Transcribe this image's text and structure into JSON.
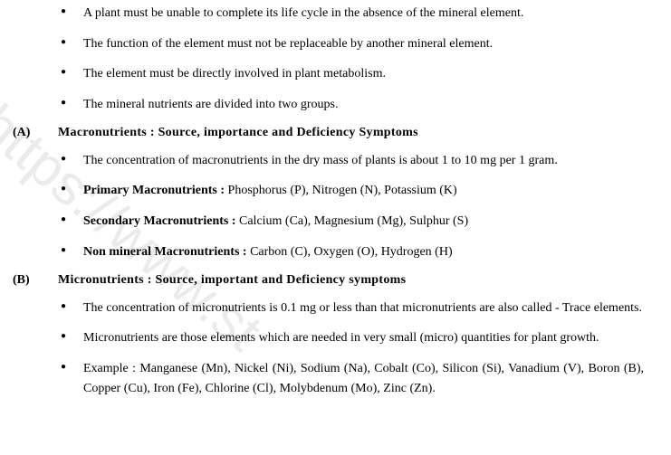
{
  "intro_bullets": [
    "A plant must be unable to complete its life cycle in the absence of the mineral element.",
    "The function of the element must not be replaceable by another mineral element.",
    "The element must be directly involved in plant metabolism.",
    "The mineral nutrients are divided into two groups."
  ],
  "sectionA": {
    "label": "(A)",
    "title": "Macronutrients : Source, importance and Deficiency Symptoms",
    "bullets": [
      {
        "plain": "The concentration of macronutrients in the dry mass of plants is about 1 to 10 mg per 1 gram."
      },
      {
        "bold": "Primary Macronutrients : ",
        "rest": "Phosphorus (P), Nitrogen (N), Potassium (K)"
      },
      {
        "bold": "Secondary Macronutrients : ",
        "rest": "Calcium (Ca), Magnesium (Mg), Sulphur (S)"
      },
      {
        "bold": "Non mineral Macronutrients : ",
        "rest": "Carbon (C), Oxygen (O), Hydrogen (H)"
      }
    ]
  },
  "sectionB": {
    "label": "(B)",
    "title": "Micronutrients : Source, important and Deficiency symptoms",
    "bullets": [
      "The concentration of micronutrients is 0.1 mg or less than that micronutrients are also called - Trace elements.",
      "Micronutrients are those elements which are needed in very small (micro) quantities for plant growth.",
      "Example : Manganese (Mn), Nickel (Ni), Sodium (Na), Cobalt (Co), Silicon (Si), Vanadium (V), Boron (B), Copper (Cu), Iron (Fe), Chlorine (Cl), Molybdenum (Mo), Zinc (Zn)."
    ]
  },
  "watermark": "https://www.st"
}
